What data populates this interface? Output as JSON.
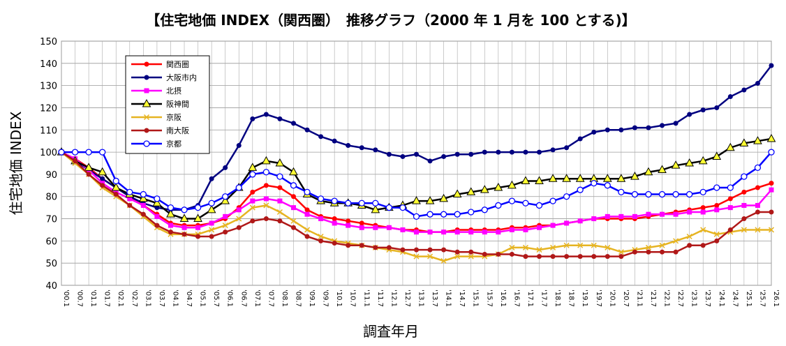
{
  "chart_data": {
    "type": "line",
    "title": "【住宅地価 INDEX（関西圏）　推移グラフ（2000 年 1 月を 100 とする)】",
    "y_label": "住宅地価 INDEX",
    "x_label": "調査年月",
    "categories": [
      "'00.1",
      "'00.7",
      "'01.1",
      "'01.7",
      "'02.1",
      "'02.7",
      "'03.1",
      "'03.7",
      "'04.1",
      "'04.7",
      "'05.1",
      "'05.7",
      "'06.1",
      "'06.7",
      "'07.1",
      "'07.7",
      "'08.1",
      "'08.7",
      "'09.1",
      "'09.7",
      "'10.1",
      "'10.7",
      "'11.1",
      "'11.7",
      "'12.1",
      "'12.7",
      "'13.1",
      "'13.7",
      "'14.1",
      "'14.7",
      "'15.1",
      "'15.7",
      "'16.1",
      "'16.7",
      "'17.1",
      "'17.7",
      "'18.1",
      "'18.7",
      "'19.1",
      "'19.7",
      "'20.1",
      "'20.7",
      "'21.1",
      "'21.7",
      "'22.1",
      "'22.7",
      "'23.1",
      "'23.7",
      "'24.1",
      "'24.7",
      "'25.1",
      "'25.7",
      "'26.1"
    ],
    "ylim": [
      40,
      150
    ],
    "yticks": [
      40,
      50,
      60,
      70,
      80,
      90,
      100,
      110,
      120,
      130,
      140,
      150
    ],
    "grid": true,
    "series": [
      {
        "name": "関西圏",
        "color": "#ff0000",
        "marker": "circle",
        "values": [
          100,
          97,
          93,
          88,
          84,
          80,
          76,
          72,
          68,
          67,
          67,
          68,
          70,
          75,
          82,
          85,
          84,
          80,
          74,
          71,
          70,
          69,
          68,
          67,
          66,
          65,
          65,
          64,
          64,
          65,
          65,
          65,
          65,
          66,
          66,
          67,
          67,
          68,
          69,
          70,
          70,
          70,
          70,
          71,
          72,
          73,
          74,
          75,
          76,
          79,
          82,
          84,
          86
        ]
      },
      {
        "name": "大阪市内",
        "color": "#000080",
        "marker": "circle",
        "values": [
          100,
          96,
          92,
          88,
          84,
          80,
          77,
          75,
          74,
          74,
          76,
          88,
          93,
          103,
          115,
          117,
          115,
          113,
          110,
          107,
          105,
          103,
          102,
          101,
          99,
          98,
          99,
          96,
          98,
          99,
          99,
          100,
          100,
          100,
          100,
          100,
          101,
          102,
          106,
          109,
          110,
          110,
          111,
          111,
          112,
          113,
          117,
          119,
          120,
          125,
          128,
          131,
          139
        ]
      },
      {
        "name": "北摂",
        "color": "#ff00ff",
        "marker": "square",
        "values": [
          100,
          97,
          92,
          86,
          82,
          79,
          76,
          71,
          67,
          66,
          66,
          68,
          71,
          74,
          78,
          79,
          78,
          75,
          72,
          70,
          68,
          67,
          66,
          66,
          66,
          65,
          64,
          64,
          64,
          64,
          64,
          64,
          64,
          65,
          65,
          66,
          67,
          68,
          69,
          70,
          71,
          71,
          71,
          72,
          72,
          72,
          73,
          73,
          74,
          75,
          76,
          76,
          83
        ]
      },
      {
        "name": "阪神間",
        "color": "#000000",
        "marker": "triangle",
        "values": [
          100,
          96,
          93,
          91,
          84,
          81,
          79,
          77,
          72,
          70,
          70,
          74,
          78,
          84,
          93,
          96,
          95,
          91,
          81,
          78,
          77,
          77,
          76,
          74,
          75,
          76,
          78,
          78,
          79,
          81,
          82,
          83,
          84,
          85,
          87,
          87,
          88,
          88,
          88,
          88,
          88,
          88,
          89,
          91,
          92,
          94,
          95,
          96,
          98,
          102,
          104,
          105,
          106
        ]
      },
      {
        "name": "京阪",
        "color": "#e6b422",
        "marker": "x",
        "values": [
          100,
          95,
          90,
          84,
          80,
          76,
          71,
          66,
          63,
          63,
          63,
          65,
          67,
          70,
          75,
          76,
          73,
          69,
          65,
          62,
          60,
          59,
          58,
          57,
          56,
          55,
          53,
          53,
          51,
          53,
          53,
          53,
          54,
          57,
          57,
          56,
          57,
          58,
          58,
          58,
          57,
          55,
          56,
          57,
          58,
          60,
          62,
          65,
          63,
          64,
          65,
          65,
          65
        ]
      },
      {
        "name": "南大阪",
        "color": "#b01818",
        "marker": "circle",
        "values": [
          100,
          96,
          90,
          85,
          81,
          76,
          72,
          67,
          64,
          63,
          62,
          62,
          64,
          66,
          69,
          70,
          69,
          66,
          62,
          60,
          59,
          58,
          58,
          57,
          57,
          56,
          56,
          56,
          56,
          55,
          55,
          54,
          54,
          54,
          53,
          53,
          53,
          53,
          53,
          53,
          53,
          53,
          55,
          55,
          55,
          55,
          58,
          58,
          60,
          65,
          70,
          73,
          73
        ]
      },
      {
        "name": "京都",
        "color": "#0000ff",
        "marker": "open-circle",
        "values": [
          100,
          100,
          100,
          100,
          87,
          82,
          81,
          79,
          75,
          74,
          75,
          77,
          80,
          84,
          90,
          91,
          89,
          85,
          82,
          79,
          78,
          77,
          77,
          77,
          75,
          75,
          71,
          72,
          72,
          72,
          73,
          74,
          76,
          78,
          77,
          76,
          78,
          80,
          83,
          86,
          85,
          82,
          81,
          81,
          81,
          81,
          81,
          82,
          84,
          84,
          89,
          93,
          100
        ]
      }
    ]
  }
}
